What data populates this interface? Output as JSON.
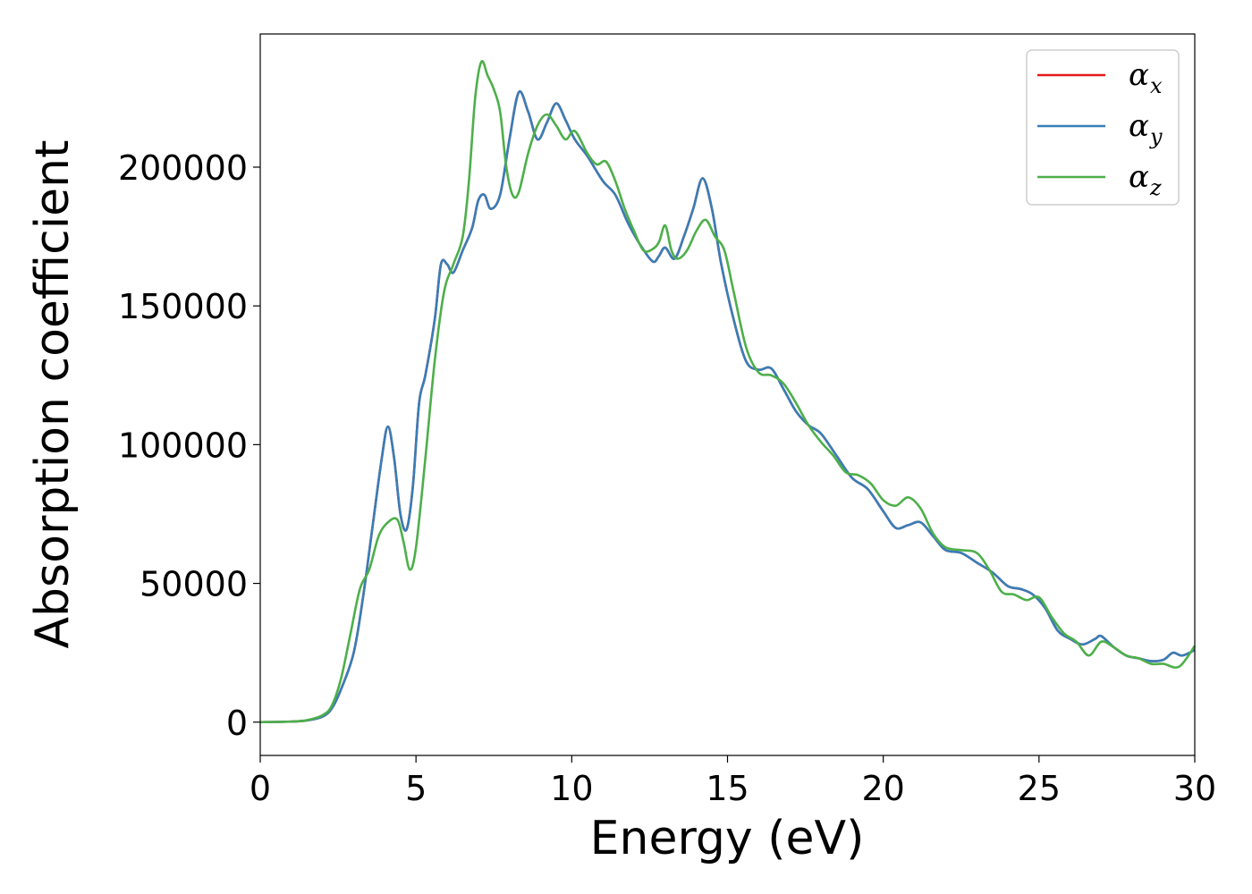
{
  "chart_data": {
    "type": "line",
    "xlabel": "Energy (eV)",
    "ylabel": "Absorption coefficient",
    "xlim": [
      0,
      30
    ],
    "ylim": [
      -12000,
      248000
    ],
    "xticks": [
      0,
      5,
      10,
      15,
      20,
      25,
      30
    ],
    "yticks": [
      0,
      50000,
      100000,
      150000,
      200000
    ],
    "grid": false,
    "legend_position": "top-right",
    "series": [
      {
        "name": "α_x",
        "symbol": "α",
        "subscript": "x",
        "color": "#e41a1c",
        "x": [
          0,
          1,
          1.5,
          2,
          2.3,
          2.6,
          3,
          3.3,
          3.6,
          3.9,
          4.1,
          4.3,
          4.5,
          4.7,
          4.9,
          5.1,
          5.3,
          5.6,
          5.8,
          6.0,
          6.2,
          6.5,
          6.8,
          7.0,
          7.2,
          7.4,
          7.7,
          8.0,
          8.3,
          8.6,
          8.9,
          9.2,
          9.5,
          9.8,
          10.1,
          10.5,
          11.0,
          11.4,
          11.8,
          12.2,
          12.6,
          12.8,
          13.0,
          13.3,
          13.6,
          13.9,
          14.2,
          14.5,
          14.8,
          15.2,
          15.6,
          16.0,
          16.4,
          16.8,
          17.2,
          17.6,
          18.0,
          18.5,
          19.0,
          19.5,
          20.0,
          20.4,
          20.8,
          21.2,
          21.6,
          22.0,
          22.5,
          23.0,
          23.5,
          24.0,
          24.4,
          24.8,
          25.2,
          25.6,
          26.0,
          26.4,
          26.8,
          27.0,
          27.4,
          27.8,
          28.2,
          28.6,
          29.0,
          29.3,
          29.6,
          30.0
        ],
        "y": [
          0,
          200,
          600,
          2000,
          5000,
          12000,
          25000,
          45000,
          70000,
          95000,
          106500,
          95000,
          75000,
          69500,
          85000,
          115000,
          125000,
          145000,
          165000,
          165000,
          162000,
          170000,
          178000,
          188000,
          190000,
          185000,
          190000,
          210000,
          227000,
          220000,
          210000,
          216000,
          223000,
          217000,
          210000,
          204000,
          195000,
          190000,
          180000,
          172000,
          166000,
          168000,
          171000,
          167000,
          175000,
          185000,
          196000,
          185000,
          165000,
          145000,
          130000,
          127000,
          127500,
          120000,
          112000,
          107000,
          104000,
          96000,
          88000,
          84000,
          76000,
          70000,
          71000,
          72000,
          67000,
          62000,
          61000,
          57500,
          54000,
          49000,
          48000,
          46000,
          41000,
          33000,
          30000,
          28000,
          30000,
          31000,
          27000,
          24000,
          23000,
          22000,
          22500,
          25000,
          24000,
          26000
        ]
      },
      {
        "name": "α_y",
        "symbol": "α",
        "subscript": "y",
        "color": "#377eb8",
        "x": [
          0,
          1,
          1.5,
          2,
          2.3,
          2.6,
          3,
          3.3,
          3.6,
          3.9,
          4.1,
          4.3,
          4.5,
          4.7,
          4.9,
          5.1,
          5.3,
          5.6,
          5.8,
          6.0,
          6.2,
          6.5,
          6.8,
          7.0,
          7.2,
          7.4,
          7.7,
          8.0,
          8.3,
          8.6,
          8.9,
          9.2,
          9.5,
          9.8,
          10.1,
          10.5,
          11.0,
          11.4,
          11.8,
          12.2,
          12.6,
          12.8,
          13.0,
          13.3,
          13.6,
          13.9,
          14.2,
          14.5,
          14.8,
          15.2,
          15.6,
          16.0,
          16.4,
          16.8,
          17.2,
          17.6,
          18.0,
          18.5,
          19.0,
          19.5,
          20.0,
          20.4,
          20.8,
          21.2,
          21.6,
          22.0,
          22.5,
          23.0,
          23.5,
          24.0,
          24.4,
          24.8,
          25.2,
          25.6,
          26.0,
          26.4,
          26.8,
          27.0,
          27.4,
          27.8,
          28.2,
          28.6,
          29.0,
          29.3,
          29.6,
          30.0
        ],
        "y": [
          0,
          200,
          600,
          2000,
          5000,
          12000,
          25000,
          45000,
          70000,
          95000,
          106500,
          95000,
          75000,
          69500,
          85000,
          115000,
          125000,
          145000,
          165000,
          165000,
          162000,
          170000,
          178000,
          188000,
          190000,
          185000,
          190000,
          210000,
          227000,
          220000,
          210000,
          216000,
          223000,
          217000,
          210000,
          204000,
          195000,
          190000,
          180000,
          172000,
          166000,
          168000,
          171000,
          167000,
          175000,
          185000,
          196000,
          185000,
          165000,
          145000,
          130000,
          127000,
          127500,
          120000,
          112000,
          107000,
          104000,
          96000,
          88000,
          84000,
          76000,
          70000,
          71000,
          72000,
          67000,
          62000,
          61000,
          57500,
          54000,
          49000,
          48000,
          46000,
          41000,
          33000,
          30000,
          28000,
          30000,
          31000,
          27000,
          24000,
          23000,
          22000,
          22500,
          25000,
          24000,
          26000
        ]
      },
      {
        "name": "α_z",
        "symbol": "α",
        "subscript": "z",
        "color": "#4daf4a",
        "x": [
          0,
          1,
          1.5,
          2,
          2.3,
          2.6,
          2.9,
          3.2,
          3.5,
          3.8,
          4.1,
          4.4,
          4.6,
          4.8,
          5.0,
          5.3,
          5.6,
          5.9,
          6.2,
          6.5,
          6.7,
          6.9,
          7.1,
          7.3,
          7.5,
          7.7,
          7.9,
          8.1,
          8.3,
          8.6,
          8.9,
          9.2,
          9.5,
          9.8,
          10.1,
          10.5,
          10.8,
          11.1,
          11.4,
          11.7,
          12.0,
          12.3,
          12.6,
          12.8,
          13.0,
          13.2,
          13.4,
          13.7,
          14.0,
          14.3,
          14.6,
          14.9,
          15.2,
          15.6,
          16.0,
          16.4,
          16.8,
          17.2,
          17.6,
          18.0,
          18.4,
          18.8,
          19.2,
          19.6,
          20.0,
          20.4,
          20.8,
          21.2,
          21.6,
          22.0,
          22.5,
          23.0,
          23.4,
          23.8,
          24.2,
          24.6,
          25.0,
          25.4,
          25.8,
          26.2,
          26.6,
          27.0,
          27.4,
          27.8,
          28.2,
          28.6,
          29.0,
          29.5,
          30.0
        ],
        "y": [
          0,
          200,
          700,
          2500,
          6000,
          16000,
          32000,
          48000,
          55000,
          67000,
          72000,
          73000,
          65000,
          55000,
          63000,
          95000,
          130000,
          155000,
          165000,
          175000,
          195000,
          225000,
          238000,
          233000,
          228000,
          220000,
          200000,
          190000,
          191000,
          205000,
          215000,
          219000,
          215000,
          210000,
          213000,
          205000,
          201000,
          202000,
          195000,
          185000,
          177000,
          170000,
          170500,
          173000,
          179000,
          170000,
          167000,
          170000,
          177000,
          181000,
          175000,
          170000,
          155000,
          135000,
          126000,
          125000,
          122000,
          115000,
          107000,
          101000,
          96000,
          90000,
          89000,
          86000,
          80000,
          78000,
          81000,
          77000,
          68000,
          63000,
          62000,
          61000,
          55000,
          47000,
          46000,
          44000,
          45000,
          38000,
          32000,
          29000,
          24000,
          29000,
          27000,
          24000,
          23000,
          21000,
          21000,
          20000,
          27500
        ]
      }
    ]
  }
}
